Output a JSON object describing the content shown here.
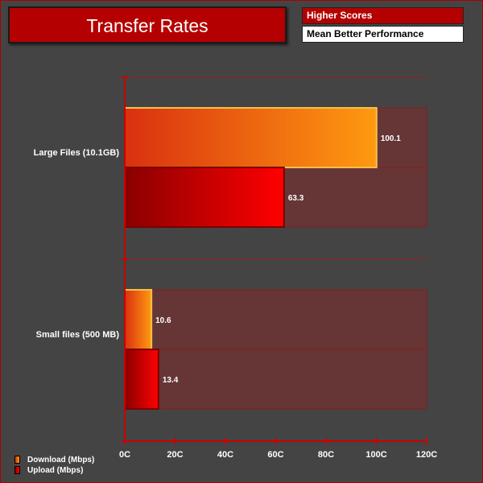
{
  "header": {
    "title": "Transfer Rates",
    "badge_primary": "Higher Scores",
    "badge_secondary": "Mean Better Performance"
  },
  "colors": {
    "background": "#444444",
    "accent": "#b40000",
    "download_from": "#d93010",
    "download_to": "#ff9a10",
    "upload_from": "#8a0000",
    "upload_to": "#ff0000",
    "axis": "#cc0000",
    "track": "#663636"
  },
  "chart_data": {
    "type": "bar",
    "orientation": "horizontal",
    "categories": [
      "Large Files (10.1GB)",
      "Small files (500 MB)"
    ],
    "series": [
      {
        "name": "Download (Mbps)",
        "values": [
          100.1,
          10.6
        ]
      },
      {
        "name": "Upload (Mbps)",
        "values": [
          63.3,
          13.4
        ]
      }
    ],
    "xlim": [
      0,
      120
    ],
    "x_ticks": [
      "0C",
      "20C",
      "40C",
      "60C",
      "80C",
      "100C",
      "120C"
    ],
    "grid": false,
    "legend_placement": "bottom-left"
  }
}
